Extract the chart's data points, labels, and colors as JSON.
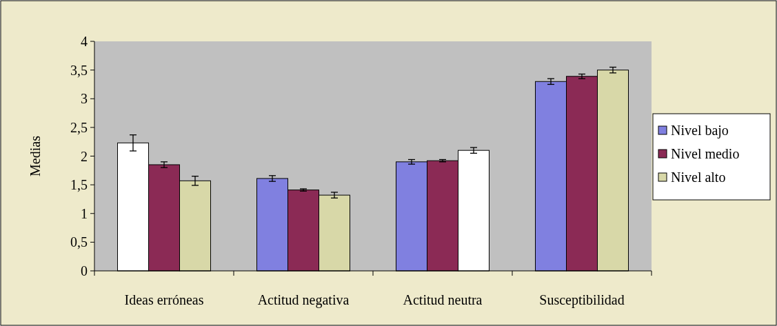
{
  "chart_data": {
    "type": "bar",
    "ylabel": "Medias",
    "categories": [
      "Ideas erróneas",
      "Actitud negativa",
      "Actitud neutra",
      "Susceptibilidad"
    ],
    "series": [
      {
        "name": "Nivel bajo",
        "color": "#8080e0",
        "colors": [
          "#ffffff",
          "#8080e0",
          "#8080e0",
          "#8080e0"
        ],
        "values": [
          2.23,
          1.61,
          1.9,
          3.3
        ],
        "errors": [
          0.14,
          0.05,
          0.04,
          0.05
        ]
      },
      {
        "name": "Nivel medio",
        "color": "#8b2a55",
        "values": [
          1.85,
          1.41,
          1.92,
          3.39
        ],
        "errors": [
          0.05,
          0.02,
          0.02,
          0.04
        ]
      },
      {
        "name": "Nivel alto",
        "color": "#d8d8a8",
        "colors": [
          "#d8d8a8",
          "#d8d8a8",
          "#ffffff",
          "#d8d8a8"
        ],
        "values": [
          1.57,
          1.32,
          2.1,
          3.5
        ],
        "errors": [
          0.08,
          0.05,
          0.05,
          0.05
        ]
      }
    ],
    "ylim": [
      0,
      4
    ],
    "yticks": [
      0,
      {
        "value": 0.5,
        "label": "0,5"
      },
      1,
      {
        "value": 1.5,
        "label": "1,5"
      },
      2,
      {
        "value": 2.5,
        "label": "2,5"
      },
      3,
      {
        "value": 3.5,
        "label": "3,5"
      },
      4
    ],
    "legend": "right",
    "grid": false
  }
}
